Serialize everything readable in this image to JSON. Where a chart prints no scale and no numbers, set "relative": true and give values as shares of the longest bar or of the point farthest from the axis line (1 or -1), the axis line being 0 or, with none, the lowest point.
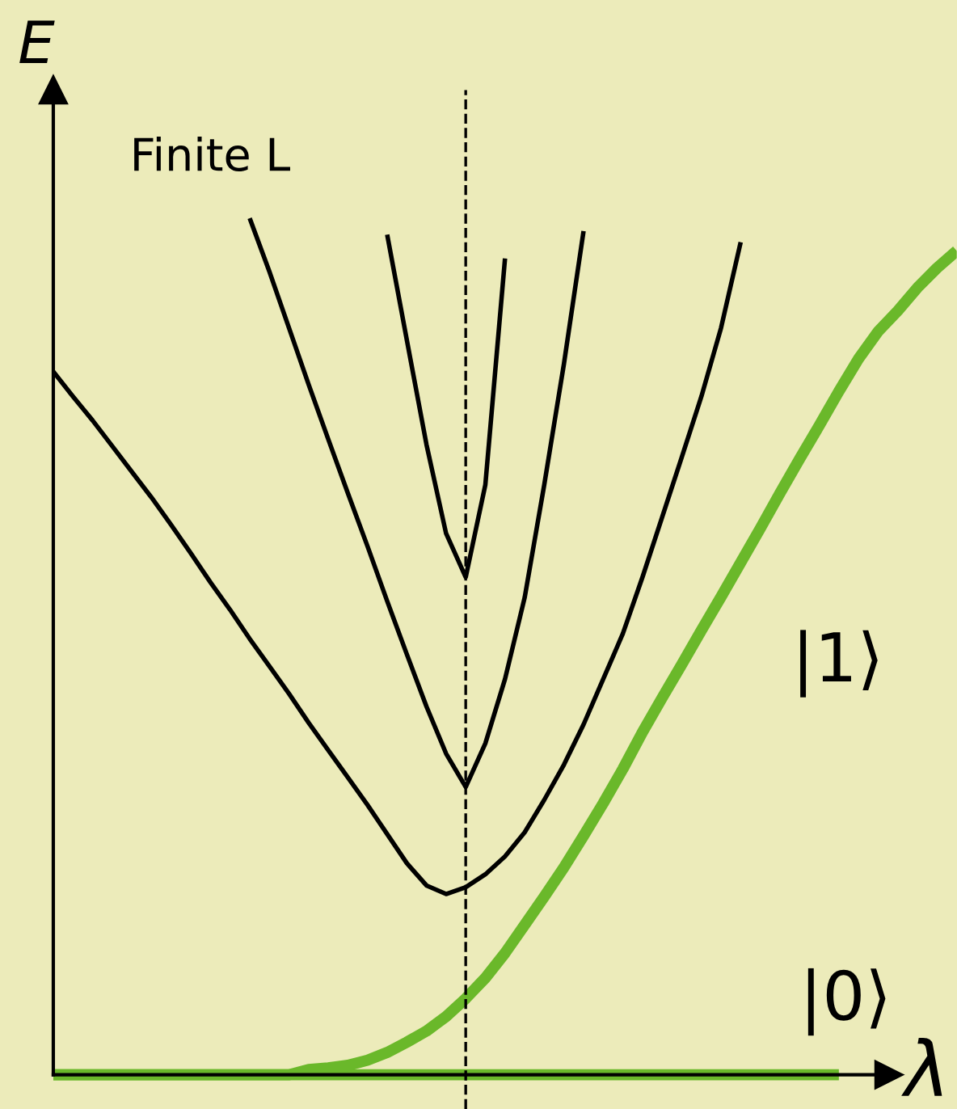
{
  "chart_data": {
    "type": "line",
    "relative": true,
    "xlabel": "λ",
    "ylabel": "E",
    "marker": "none",
    "line_style": "solid",
    "annotations": [
      "Finite L",
      "|1⟩",
      "|0⟩"
    ],
    "categories": [
      null,
      null,
      null,
      null,
      null,
      null,
      null,
      null,
      null,
      null,
      null,
      null,
      null,
      null,
      null,
      null,
      null,
      null,
      null,
      null,
      null,
      null,
      null,
      null,
      null,
      null,
      null,
      null,
      null,
      null,
      null,
      null,
      null,
      null,
      null,
      null,
      null,
      null,
      null,
      null,
      null,
      null,
      null,
      null,
      null,
      null,
      null
    ],
    "series": [
      {
        "color": "#000000",
        "values": [
          0.821,
          0.792,
          0.764,
          0.734,
          0.704,
          0.674,
          0.642,
          0.609,
          0.575,
          0.543,
          0.509,
          0.477,
          0.445,
          0.411,
          0.379,
          0.347,
          0.315,
          0.281,
          0.247,
          0.221,
          0.211,
          0.219,
          0.234,
          0.255,
          0.283,
          0.321,
          0.362,
          0.409,
          0.462,
          0.515,
          0.581,
          0.651,
          0.721,
          0.792,
          0.872,
          0.972,
          null,
          null,
          null,
          null,
          null,
          null,
          null,
          null,
          null,
          null,
          null
        ]
      },
      {
        "color": "#000000",
        "values": [
          null,
          null,
          null,
          null,
          null,
          null,
          null,
          null,
          null,
          null,
          1.0,
          0.938,
          0.872,
          0.806,
          0.742,
          0.679,
          0.617,
          0.553,
          0.491,
          0.43,
          0.375,
          0.336,
          0.387,
          0.462,
          0.557,
          0.689,
          0.83,
          0.985,
          null,
          null,
          null,
          null,
          null,
          null,
          null,
          null,
          null,
          null,
          null,
          null,
          null,
          null,
          null,
          null,
          null,
          null,
          null
        ]
      },
      {
        "color": "#000000",
        "values": [
          null,
          null,
          null,
          null,
          null,
          null,
          null,
          null,
          null,
          null,
          null,
          null,
          null,
          null,
          null,
          null,
          null,
          0.981,
          0.858,
          0.736,
          0.632,
          0.581,
          0.689,
          0.953,
          null,
          null,
          null,
          null,
          null,
          null,
          null,
          null,
          null,
          null,
          null,
          null,
          null,
          null,
          null,
          null,
          null,
          null,
          null,
          null,
          null,
          null,
          null
        ]
      },
      {
        "color": "#6ab82a",
        "values": [
          0,
          0,
          0,
          0,
          0,
          0,
          0,
          0,
          0,
          0,
          0,
          0,
          0,
          0,
          0,
          0,
          0,
          0,
          0,
          0,
          0,
          0,
          0,
          0,
          0,
          0,
          0,
          0,
          0,
          0,
          0,
          0,
          0,
          0,
          0,
          0,
          0,
          0,
          0,
          0,
          0,
          null,
          null,
          null,
          null,
          null,
          null
        ]
      },
      {
        "color": "#6ab82a",
        "values": [
          0,
          0,
          0,
          0,
          0,
          0,
          0,
          0,
          0,
          0,
          0,
          0,
          0,
          0.006,
          0.008,
          0.011,
          0.017,
          0.026,
          0.038,
          0.051,
          0.068,
          0.089,
          0.113,
          0.142,
          0.175,
          0.208,
          0.242,
          0.279,
          0.317,
          0.357,
          0.4,
          0.44,
          0.479,
          0.519,
          0.558,
          0.598,
          0.638,
          0.679,
          0.719,
          0.758,
          0.798,
          0.836,
          0.868,
          0.892,
          0.919,
          0.942,
          0.962
        ]
      }
    ]
  }
}
